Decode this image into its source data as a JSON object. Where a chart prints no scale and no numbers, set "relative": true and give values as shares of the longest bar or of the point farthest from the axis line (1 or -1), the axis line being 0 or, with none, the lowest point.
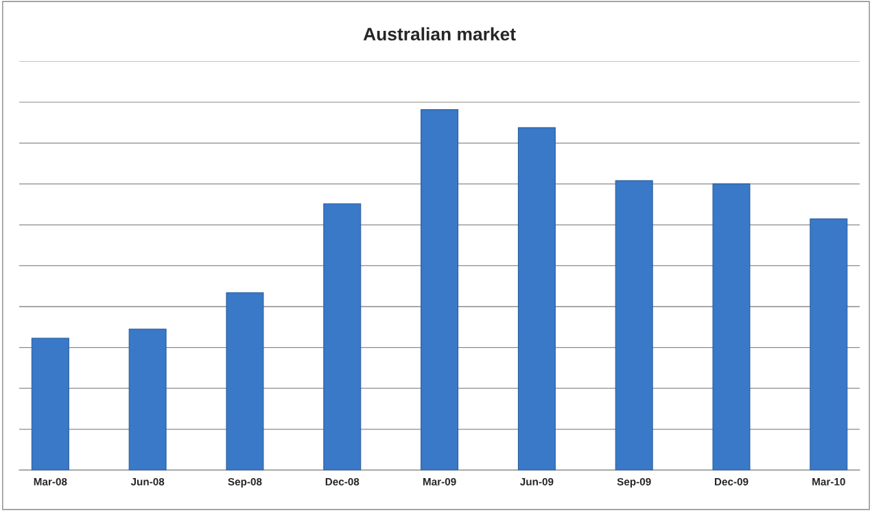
{
  "chart_data": {
    "type": "bar",
    "title": "Australian market",
    "categories": [
      "Mar-08",
      "Jun-08",
      "Sep-08",
      "Dec-08",
      "Mar-09",
      "Jun-09",
      "Sep-09",
      "Dec-09",
      "Mar-10"
    ],
    "values": [
      0.366,
      0.391,
      0.492,
      0.739,
      1,
      0.95,
      0.803,
      0.794,
      0.697
    ],
    "color": "#3a78c8",
    "relative": true,
    "grid": "y",
    "legend": false
  }
}
